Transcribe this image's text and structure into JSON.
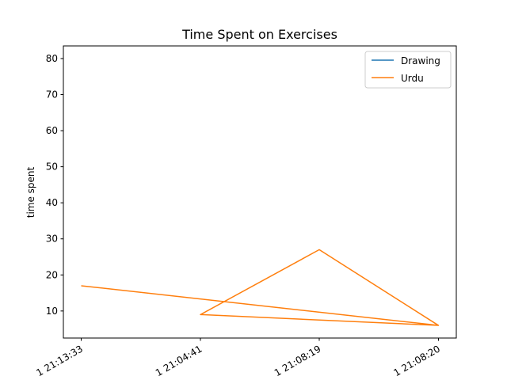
{
  "chart_data": {
    "type": "line",
    "title": "Time Spent on Exercises",
    "xlabel": "",
    "ylabel": "time spent",
    "categories": [
      "1  21:13:33",
      "1  21:04:41",
      "1  21:08:19",
      "1  21:08:20"
    ],
    "ylim": [
      2.5,
      83.5
    ],
    "yticks": [
      10,
      20,
      30,
      40,
      50,
      60,
      70,
      80
    ],
    "grid": false,
    "legend_position": "top-right",
    "series": [
      {
        "name": "Drawing",
        "color": "#1f77b4",
        "x": [],
        "values": []
      },
      {
        "name": "Urdu",
        "color": "#ff7f0e",
        "x": [
          0,
          3,
          1,
          2,
          3
        ],
        "values": [
          17,
          6,
          9,
          27,
          6
        ]
      }
    ]
  }
}
